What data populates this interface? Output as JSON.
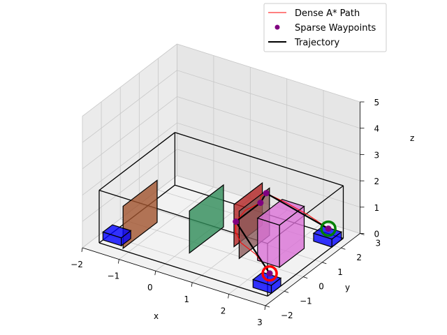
{
  "chart_data": {
    "type": "3d-scene",
    "title": "",
    "axes": {
      "x": {
        "label": "x",
        "lim": [
          -2,
          3
        ],
        "ticks": [
          "−2",
          "−1",
          "0",
          "1",
          "2",
          "3"
        ]
      },
      "y": {
        "label": "y",
        "lim": [
          -2,
          3
        ],
        "ticks": [
          "−2",
          "−1",
          "0",
          "1",
          "2",
          "3"
        ]
      },
      "z": {
        "label": "z",
        "lim": [
          0,
          5
        ],
        "ticks": [
          "0",
          "1",
          "2",
          "3",
          "4",
          "5"
        ]
      }
    },
    "grid": true,
    "legend": {
      "placement": "top-right",
      "entries": [
        {
          "label": "Dense A* Path",
          "style": "line",
          "color": "#ff0000"
        },
        {
          "label": "Sparse Waypoints",
          "style": "marker",
          "color": "#800080"
        },
        {
          "label": "Trajectory",
          "style": "thick-line",
          "color": "#000000"
        }
      ]
    },
    "colors": {
      "start_marker": "#ff0000",
      "goal_marker": "#008000",
      "pads": "#0000ff",
      "walls": [
        "#a0522d",
        "#2e8b57",
        "#b22222",
        "#8b5a5a",
        "#da70d6"
      ]
    },
    "room": {
      "x": [
        -1.8,
        2.8
      ],
      "y": [
        -1.5,
        2.5
      ],
      "z": [
        0,
        2
      ]
    },
    "pads": [
      {
        "name": "pad-left",
        "x": [
          -1.8,
          -1.3
        ],
        "y": [
          -1.3,
          -0.8
        ],
        "z": [
          0,
          0.3
        ]
      },
      {
        "name": "pad-start",
        "x": [
          2.3,
          2.8
        ],
        "y": [
          -1.3,
          -0.8
        ],
        "z": [
          0,
          0.3
        ]
      },
      {
        "name": "pad-goal",
        "x": [
          2.3,
          2.8
        ],
        "y": [
          1.9,
          2.4
        ],
        "z": [
          0,
          0.3
        ]
      }
    ],
    "walls": [
      {
        "name": "wall-orange",
        "x": [
          -1.2,
          -1.2
        ],
        "y": [
          -1.4,
          0.4
        ],
        "z": [
          0,
          1.6
        ],
        "color": "#a0522d"
      },
      {
        "name": "wall-green",
        "x": [
          0.2,
          0.2
        ],
        "y": [
          -0.6,
          1.2
        ],
        "z": [
          0,
          1.6
        ],
        "color": "#2e8b57"
      },
      {
        "name": "wall-red",
        "x": [
          0.9,
          0.9
        ],
        "y": [
          0.4,
          1.9
        ],
        "z": [
          0,
          1.6
        ],
        "color": "#b22222"
      },
      {
        "name": "wall-brown",
        "x": [
          1.3,
          1.3
        ],
        "y": [
          -0.1,
          1.5
        ],
        "z": [
          0,
          1.8
        ],
        "color": "#8b5a5a"
      },
      {
        "name": "wall-pink",
        "x": [
          1.7,
          2.3
        ],
        "y": [
          0.1,
          1.4
        ],
        "z": [
          0,
          1.6
        ],
        "color": "#da70d6"
      }
    ],
    "start": {
      "x": 2.6,
      "y": -1.0,
      "z": 0.5
    },
    "goal": {
      "x": 2.6,
      "y": 2.1,
      "z": 0.5
    },
    "waypoints": [
      {
        "x": 2.6,
        "y": -1.0,
        "z": 0.5
      },
      {
        "x": 0.9,
        "y": 0.5,
        "z": 0.9
      },
      {
        "x": 0.9,
        "y": 1.8,
        "z": 0.9
      },
      {
        "x": 0.9,
        "y": 2.1,
        "z": 1.1
      },
      {
        "x": 2.6,
        "y": 2.1,
        "z": 0.5
      }
    ],
    "dense_path": [
      {
        "x": 2.6,
        "y": -1.0,
        "z": 0.5
      },
      {
        "x": 2.3,
        "y": -0.7,
        "z": 0.5
      },
      {
        "x": 1.9,
        "y": -0.4,
        "z": 0.6
      },
      {
        "x": 1.4,
        "y": -0.2,
        "z": 0.7
      },
      {
        "x": 1.1,
        "y": 0.1,
        "z": 0.8
      },
      {
        "x": 0.9,
        "y": 0.5,
        "z": 0.9
      },
      {
        "x": 0.8,
        "y": 1.2,
        "z": 0.9
      },
      {
        "x": 0.9,
        "y": 1.8,
        "z": 0.9
      },
      {
        "x": 0.8,
        "y": 2.0,
        "z": 1.0
      },
      {
        "x": 0.9,
        "y": 2.1,
        "z": 1.1
      },
      {
        "x": 1.4,
        "y": 2.2,
        "z": 0.9
      },
      {
        "x": 2.0,
        "y": 2.2,
        "z": 0.7
      },
      {
        "x": 2.6,
        "y": 2.1,
        "z": 0.5
      }
    ]
  }
}
